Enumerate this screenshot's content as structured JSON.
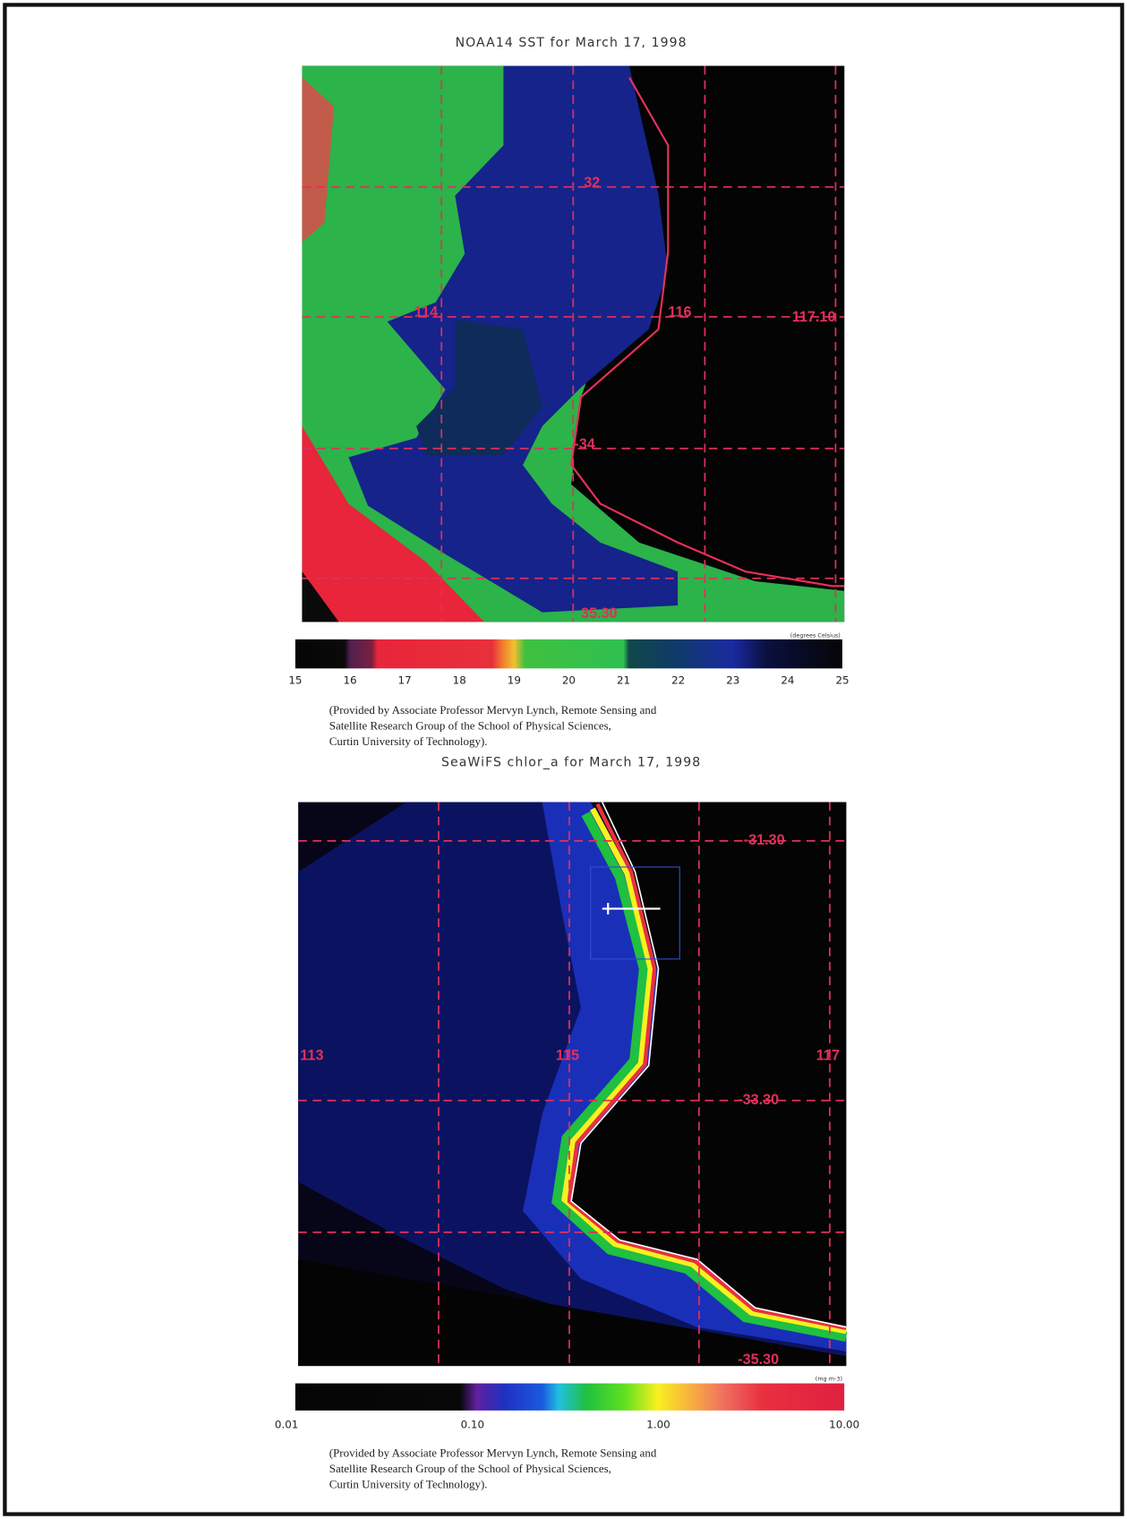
{
  "panels": [
    {
      "title": "NOAA14 SST for March 17, 1998",
      "grid_labels": [
        "32",
        "114",
        "116",
        "117.10",
        "-34",
        "35.30"
      ],
      "unit": "(degrees Celsius)",
      "scale_labels": [
        "15",
        "16",
        "17",
        "18",
        "19",
        "20",
        "21",
        "22",
        "23",
        "24",
        "25"
      ],
      "caption": [
        "(Provided by Associate Professor Mervyn Lynch, Remote Sensing and",
        "Satellite Research Group of the School of Physical Sciences,",
        "Curtin University of Technology)."
      ]
    },
    {
      "title": "SeaWiFS chlor_a for March 17, 1998",
      "grid_labels": [
        "-31.30",
        "113",
        "115",
        "117",
        "-33.30",
        "-35.30"
      ],
      "unit": "(mg m-3)",
      "scale_labels": [
        "0.01",
        "0.10",
        "1.00",
        "10.00"
      ],
      "caption": [
        "(Provided by Associate Professor Mervyn Lynch, Remote Sensing and",
        "Satellite Research Group of the School of Physical Sciences,",
        "Curtin University of Technology)."
      ]
    }
  ]
}
